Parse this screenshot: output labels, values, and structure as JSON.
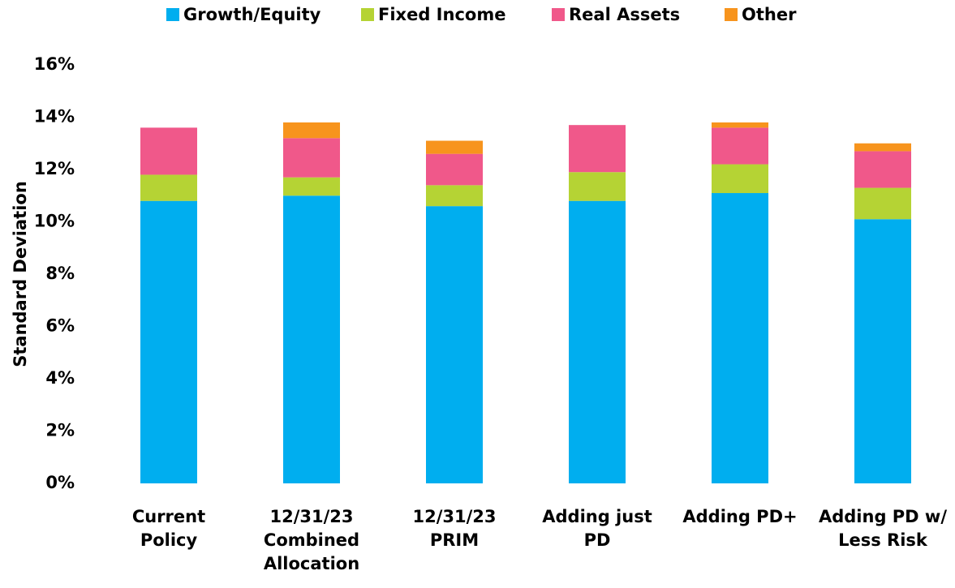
{
  "chart_data": {
    "type": "stacked_bar",
    "y_axis_label": "Standard Deviation",
    "categories": [
      "Current\nPolicy",
      "12/31/23\nCombined\nAllocation",
      "12/31/23\nPRIM",
      "Adding just\nPD",
      "Adding PD+",
      "Adding PD w/\nLess Risk"
    ],
    "series": [
      {
        "name": "Growth/Equity",
        "color": "#00aeef",
        "values": [
          10.8,
          11.0,
          10.6,
          10.8,
          11.1,
          10.1
        ]
      },
      {
        "name": "Fixed Income",
        "color": "#b5d334",
        "values": [
          1.0,
          0.7,
          0.8,
          1.1,
          1.1,
          1.2
        ]
      },
      {
        "name": "Real Assets",
        "color": "#f0588a",
        "values": [
          1.8,
          1.5,
          1.2,
          1.8,
          1.4,
          1.4
        ]
      },
      {
        "name": "Other",
        "color": "#f7941d",
        "values": [
          0,
          0.6,
          0.5,
          0,
          0.2,
          0.3
        ]
      }
    ],
    "ylim": [
      0,
      16
    ],
    "yticks": [
      {
        "value": 0,
        "label": "0%"
      },
      {
        "value": 2,
        "label": "2%"
      },
      {
        "value": 4,
        "label": "4%"
      },
      {
        "value": 6,
        "label": "6%"
      },
      {
        "value": 8,
        "label": "8%"
      },
      {
        "value": 10,
        "label": "10%"
      },
      {
        "value": 12,
        "label": "12%"
      },
      {
        "value": 14,
        "label": "14%"
      },
      {
        "value": 16,
        "label": "16%"
      }
    ],
    "legend": "top"
  }
}
